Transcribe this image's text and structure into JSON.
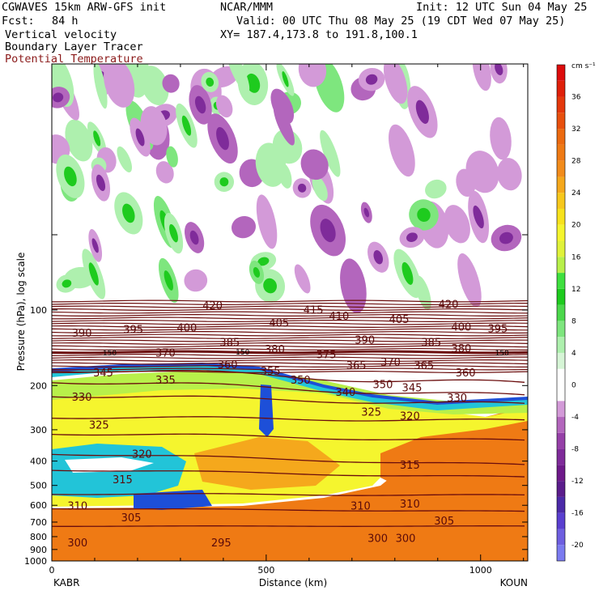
{
  "header": {
    "model": "CGWAVES 15km ARW-GFS init",
    "org": "NCAR/MMM",
    "init": "Init: 12 UTC Sun 04 May 25",
    "fcst_label": "Fcst:",
    "fcst_value": "84 h",
    "valid": "Valid: 00 UTC Thu 08 May 25 (19 CDT Wed 07 May 25)",
    "field1": "Vertical velocity",
    "field2": "Boundary Layer Tracer",
    "field3": "Potential Temperature",
    "xy": "XY= 187.4,173.8 to 191.8,100.1"
  },
  "colors": {
    "theta_contour": "#6b0d0d",
    "tracer": "#2a1a0a"
  },
  "chart_data": {
    "type": "heatmap",
    "title": "",
    "xlabel": "Distance (km)",
    "ylabel": "Pressure (hPa), log scale",
    "xlim": [
      0,
      1110
    ],
    "x_ticks": [
      0,
      500,
      1000
    ],
    "x_tick_labels": [
      "0",
      "500",
      "1000"
    ],
    "x_endpoints": {
      "left": "KABR",
      "right": "KOUN"
    },
    "y_scale": "log",
    "y_ticks": [
      100,
      200,
      300,
      400,
      500,
      600,
      700,
      800,
      900,
      1000
    ],
    "y_tick_labels": [
      "100",
      "200",
      "300",
      "400",
      "500",
      "600",
      "700",
      "800",
      "900",
      "1000"
    ],
    "colorbar": {
      "units": "cm s⁻¹",
      "ticks": [
        -20,
        -16,
        -12,
        -8,
        -4,
        0,
        4,
        8,
        12,
        16,
        20,
        24,
        28,
        32,
        36
      ],
      "tick_labels": [
        "-20",
        "-16",
        "-12",
        "-8",
        "-4",
        "0",
        "4",
        "8",
        "12",
        "16",
        "20",
        "24",
        "28",
        "32",
        "36"
      ],
      "levels": [
        -22,
        -20,
        -18,
        -16,
        -14,
        -12,
        -10,
        -8,
        -6,
        -4,
        -2,
        2,
        4,
        6,
        8,
        10,
        12,
        14,
        16,
        18,
        20,
        22,
        24,
        26,
        28,
        30,
        32,
        34,
        36,
        38,
        40
      ],
      "colors": [
        "#7b7bf0",
        "#6e5fe0",
        "#5a3fd0",
        "#4b2aa8",
        "#5b1d8c",
        "#6e1a8a",
        "#7f2b9a",
        "#9640a8",
        "#b366bd",
        "#d39ad8",
        "#ffffff",
        "#d6f5d6",
        "#aef0ae",
        "#7ee67e",
        "#4cd84c",
        "#1ecb1e",
        "#3fe03f",
        "#b8f04a",
        "#e0f23a",
        "#f5f52e",
        "#f7e21c",
        "#f7c81c",
        "#f5a81c",
        "#f28c1c",
        "#ef7a14",
        "#ec6a10",
        "#e8500e",
        "#e4380c",
        "#df200a",
        "#dd0c0c"
      ]
    },
    "theta_contours": [
      {
        "label": "295",
        "x": 395,
        "p": 855
      },
      {
        "label": "300",
        "x": 60,
        "p": 855
      },
      {
        "label": "300",
        "x": 760,
        "p": 820
      },
      {
        "label": "300",
        "x": 825,
        "p": 820
      },
      {
        "label": "305",
        "x": 185,
        "p": 680
      },
      {
        "label": "305",
        "x": 915,
        "p": 700
      },
      {
        "label": "310",
        "x": 60,
        "p": 610
      },
      {
        "label": "310",
        "x": 720,
        "p": 610
      },
      {
        "label": "310",
        "x": 835,
        "p": 600
      },
      {
        "label": "315",
        "x": 165,
        "p": 480
      },
      {
        "label": "315",
        "x": 835,
        "p": 420
      },
      {
        "label": "320",
        "x": 210,
        "p": 380
      },
      {
        "label": "320",
        "x": 835,
        "p": 268
      },
      {
        "label": "325",
        "x": 110,
        "p": 290
      },
      {
        "label": "325",
        "x": 745,
        "p": 258
      },
      {
        "label": "330",
        "x": 70,
        "p": 225
      },
      {
        "label": "330",
        "x": 945,
        "p": 226
      },
      {
        "label": "335",
        "x": 265,
        "p": 192
      },
      {
        "label": "340",
        "x": 685,
        "p": 215
      },
      {
        "label": "345",
        "x": 120,
        "p": 180
      },
      {
        "label": "345",
        "x": 840,
        "p": 206
      },
      {
        "label": "350",
        "x": 580,
        "p": 192
      },
      {
        "label": "350",
        "x": 772,
        "p": 200
      },
      {
        "label": "355",
        "x": 510,
        "p": 177
      },
      {
        "label": "360",
        "x": 410,
        "p": 167
      },
      {
        "label": "360",
        "x": 965,
        "p": 180
      },
      {
        "label": "365",
        "x": 710,
        "p": 168
      },
      {
        "label": "365",
        "x": 868,
        "p": 168
      },
      {
        "label": "370",
        "x": 265,
        "p": 150
      },
      {
        "label": "370",
        "x": 790,
        "p": 163
      },
      {
        "label": "375",
        "x": 640,
        "p": 152
      },
      {
        "label": "380",
        "x": 520,
        "p": 145
      },
      {
        "label": "380",
        "x": 955,
        "p": 144
      },
      {
        "label": "385",
        "x": 415,
        "p": 136
      },
      {
        "label": "385",
        "x": 885,
        "p": 136
      },
      {
        "label": "390",
        "x": 70,
        "p": 125
      },
      {
        "label": "390",
        "x": 730,
        "p": 133
      },
      {
        "label": "395",
        "x": 190,
        "p": 121
      },
      {
        "label": "395",
        "x": 1040,
        "p": 120
      },
      {
        "label": "400",
        "x": 315,
        "p": 119
      },
      {
        "label": "400",
        "x": 955,
        "p": 118
      },
      {
        "label": "405",
        "x": 530,
        "p": 114
      },
      {
        "label": "405",
        "x": 810,
        "p": 110
      },
      {
        "label": "410",
        "x": 670,
        "p": 107
      },
      {
        "label": "415",
        "x": 610,
        "p": 101
      },
      {
        "label": "420",
        "x": 375,
        "p": 97
      },
      {
        "label": "420",
        "x": 925,
        "p": 96
      },
      {
        "label": "150",
        "x": 135,
        "p": 148
      },
      {
        "label": "150",
        "x": 445,
        "p": 147
      },
      {
        "label": "150",
        "x": 1050,
        "p": 148
      }
    ]
  }
}
